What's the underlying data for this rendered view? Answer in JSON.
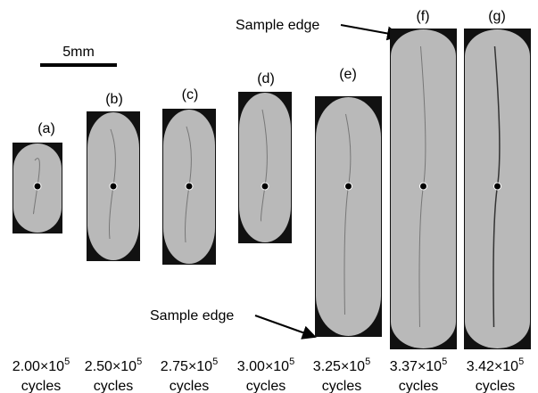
{
  "scale_bar": "5mm",
  "annotations": {
    "top": "Sample edge",
    "bottom": "Sample edge"
  },
  "panels": [
    {
      "label": "(a)",
      "cycles": "2.00×10",
      "exponent": "5",
      "unit": "cycles"
    },
    {
      "label": "(b)",
      "cycles": "2.50×10",
      "exponent": "5",
      "unit": "cycles"
    },
    {
      "label": "(c)",
      "cycles": "2.75×10",
      "exponent": "5",
      "unit": "cycles"
    },
    {
      "label": "(d)",
      "cycles": "3.00×10",
      "exponent": "5",
      "unit": "cycles"
    },
    {
      "label": "(e)",
      "cycles": "3.25×10",
      "exponent": "5",
      "unit": "cycles"
    },
    {
      "label": "(f)",
      "cycles": "3.37×10",
      "exponent": "5",
      "unit": "cycles"
    },
    {
      "label": "(g)",
      "cycles": "3.42×10",
      "exponent": "5",
      "unit": "cycles"
    }
  ]
}
